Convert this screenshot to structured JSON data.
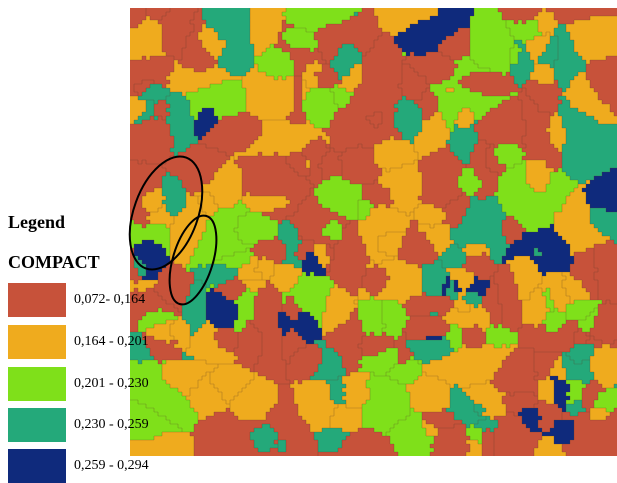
{
  "legend": {
    "title": "Legend",
    "attribute": "COMPACT",
    "classes": [
      {
        "label": "0,072- 0,164",
        "color": "#c7523a"
      },
      {
        "label": "0,164 - 0,201",
        "color": "#efab1e"
      },
      {
        "label": "0,201 - 0,230",
        "color": "#7fe01a"
      },
      {
        "label": "0,230 - 0,259",
        "color": "#24a97a"
      },
      {
        "label": "0,259 - 0,294",
        "color": "#0f2a7c"
      }
    ]
  },
  "highlight": {
    "outline_color": "#000000"
  }
}
